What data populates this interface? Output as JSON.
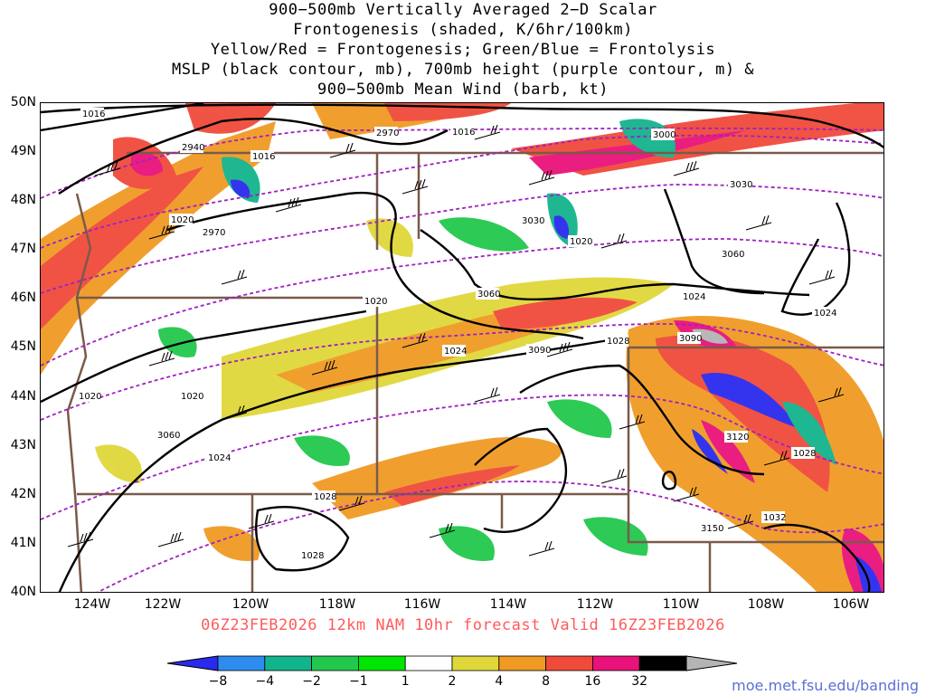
{
  "title": {
    "line1": "900−500mb Vertically Averaged 2−D Scalar",
    "line2": "Frontogenesis (shaded, K/6hr/100km)",
    "line3": "Yellow/Red = Frontogenesis;  Green/Blue = Frontolysis",
    "line4": "MSLP (black contour, mb), 700mb height (purple contour, m) &",
    "line5": "900−500mb Mean Wind (barb, kt)"
  },
  "map": {
    "latitude_labels": [
      "50N",
      "49N",
      "48N",
      "47N",
      "46N",
      "45N",
      "44N",
      "43N",
      "42N",
      "41N",
      "40N"
    ],
    "longitude_labels": [
      "124W",
      "122W",
      "120W",
      "118W",
      "116W",
      "114W",
      "112W",
      "110W",
      "108W",
      "106W"
    ],
    "mslp_labels": [
      "1016",
      "1016",
      "1016",
      "1020",
      "1020",
      "1020",
      "1020",
      "1020",
      "1024",
      "1024",
      "1024",
      "1024",
      "1028",
      "1028",
      "1028",
      "1028",
      "1032"
    ],
    "height_labels": [
      "2940",
      "2970",
      "2970",
      "3000",
      "3030",
      "3030",
      "3060",
      "3060",
      "3060",
      "3090",
      "3090",
      "3120",
      "3150"
    ],
    "colors": {
      "mslp_contour": "#000000",
      "height_contour": "#a020c0",
      "state_border": "#7a5a4a"
    }
  },
  "model_run": "06Z23FEB2026 12km NAM 10hr forecast Valid 16Z23FEB2026",
  "colorbar": {
    "labels": [
      "−8",
      "−4",
      "−2",
      "−1",
      "1",
      "2",
      "4",
      "8",
      "16",
      "32"
    ],
    "colors": [
      "#2a2aee",
      "#2e8cf0",
      "#12b48c",
      "#22c84e",
      "#00e600",
      "#ffffff",
      "#e0d83a",
      "#f09a24",
      "#f04a3a",
      "#e8127a",
      "#000000",
      "#b4b4b4"
    ]
  },
  "website": "moe.met.fsu.edu/banding"
}
